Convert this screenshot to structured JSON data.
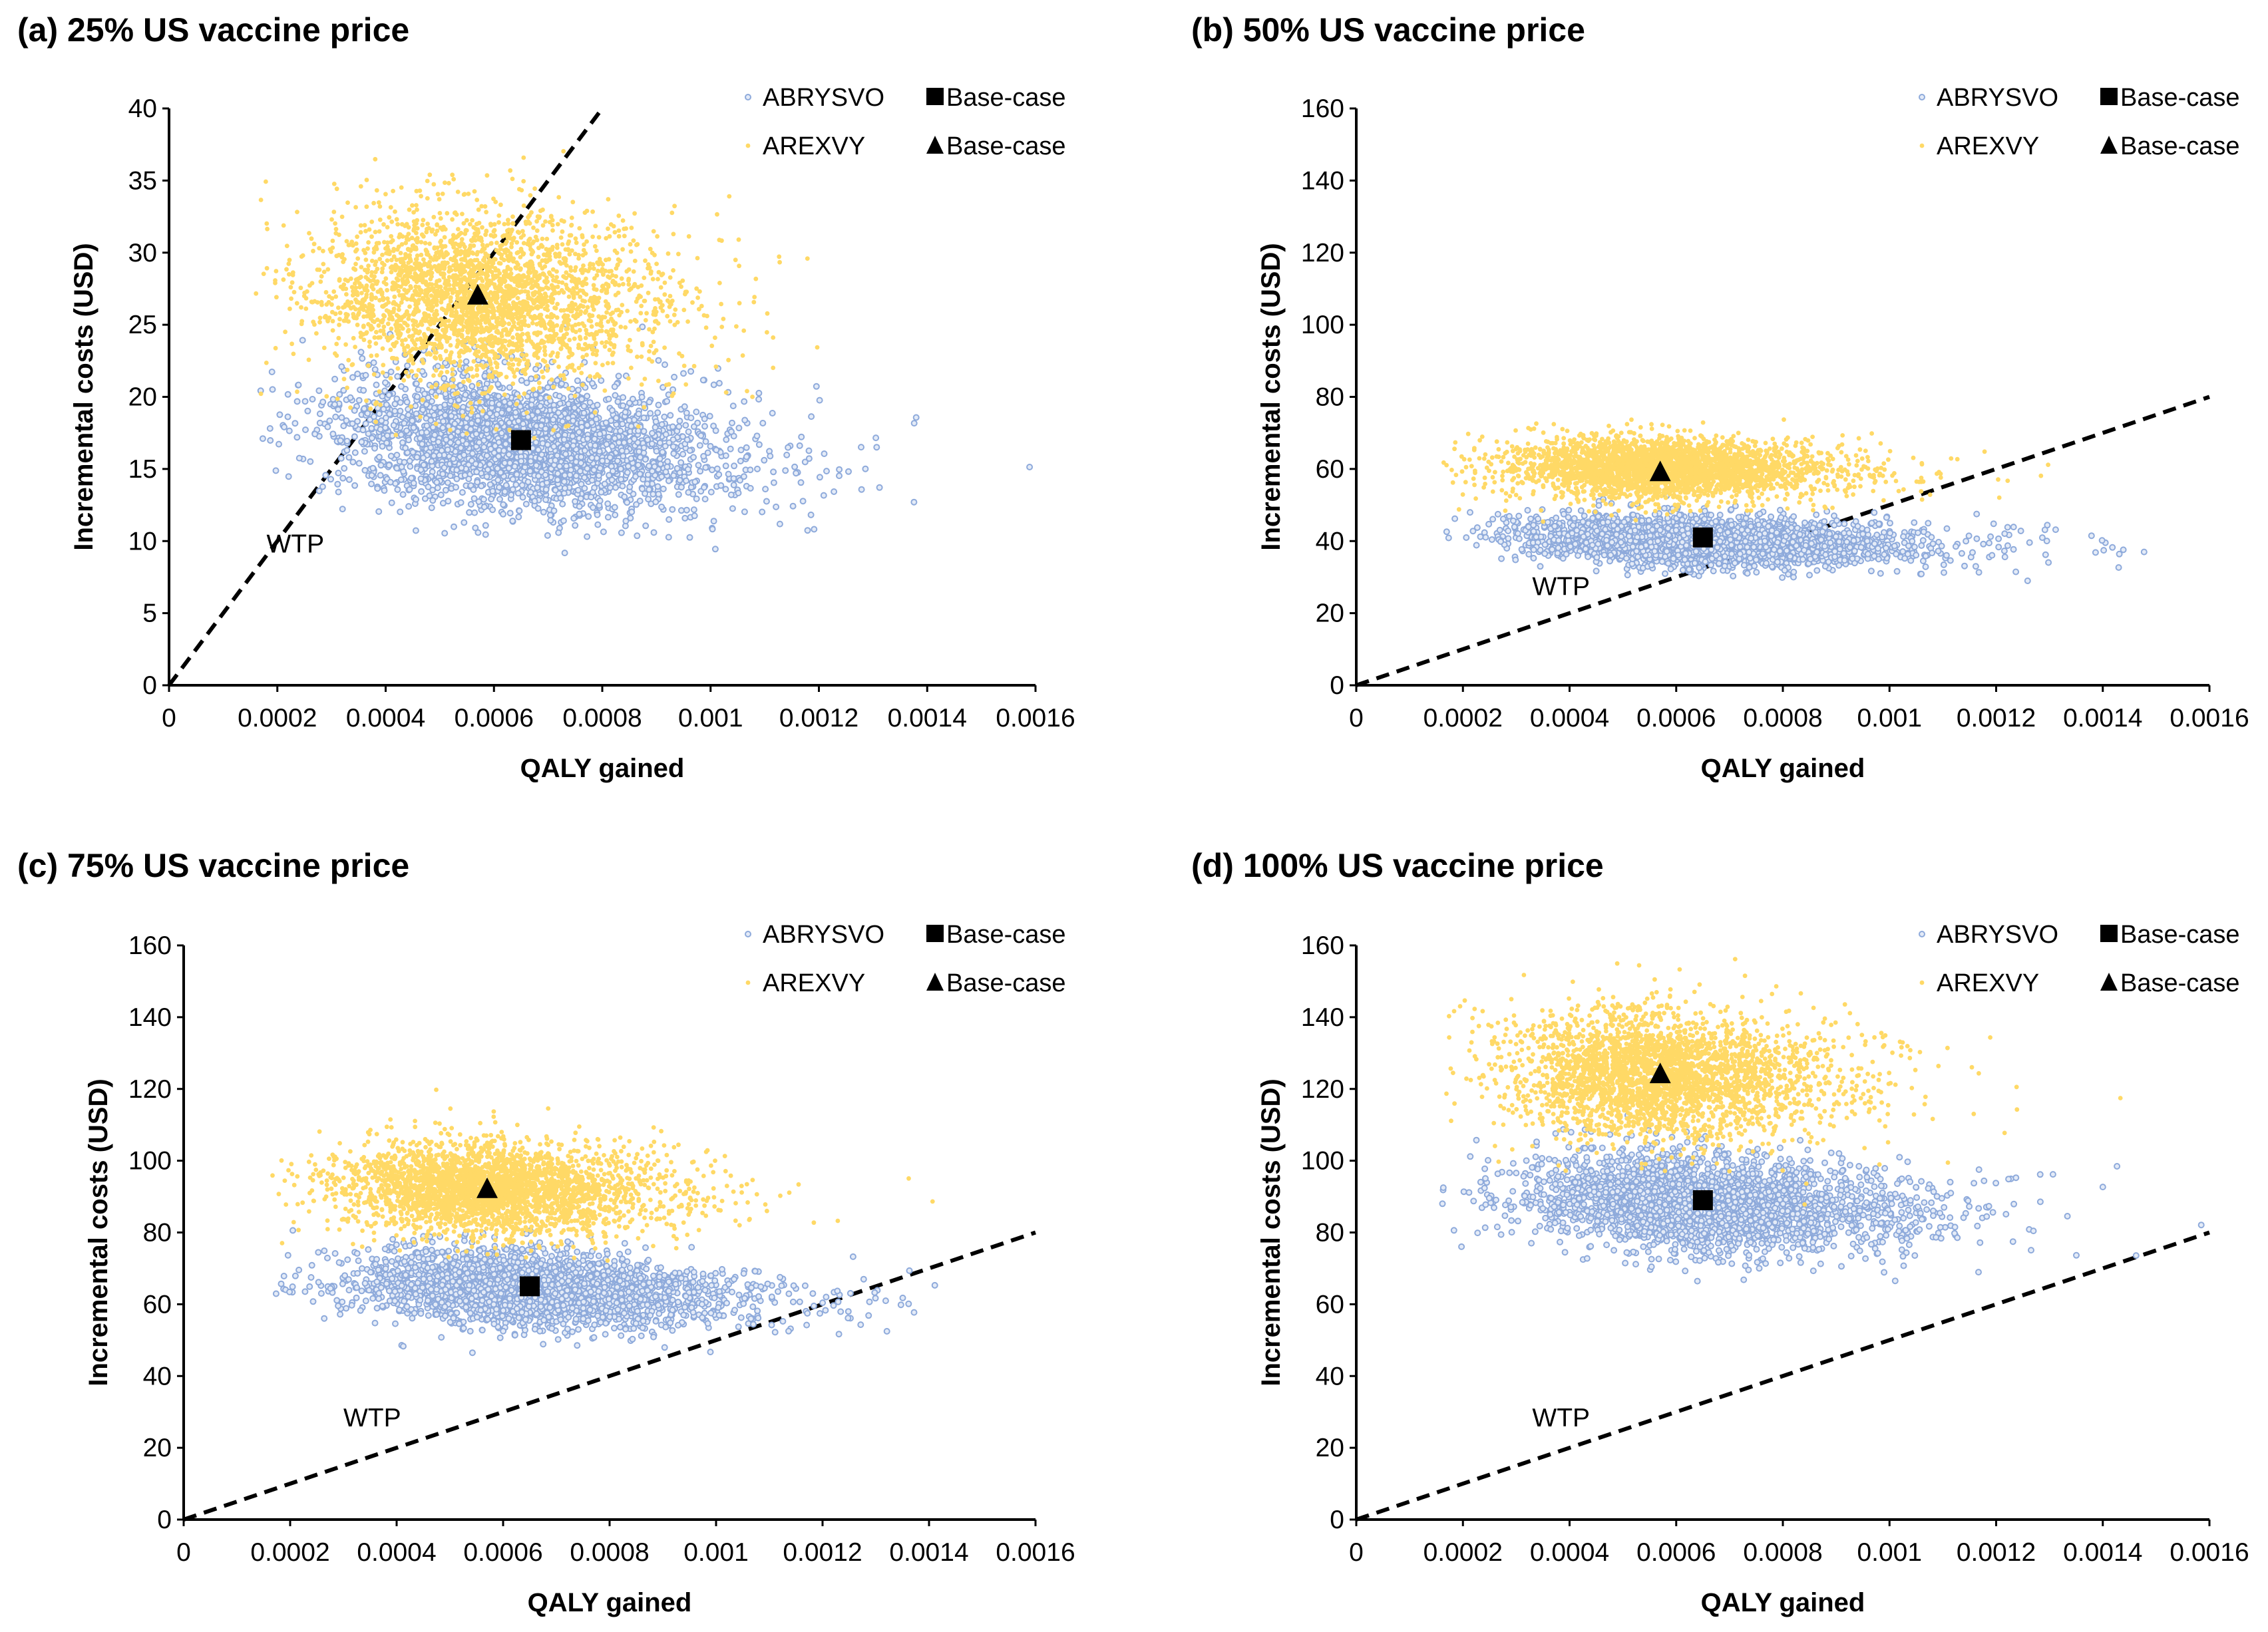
{
  "chart_data": [
    {
      "type": "scatter",
      "title": "(a) 25% US vaccine price",
      "xlabel": "QALY gained",
      "ylabel": "Incremental costs (USD)",
      "xlim": [
        0,
        0.0016
      ],
      "ylim": [
        0,
        40
      ],
      "xticks": [
        "0",
        "0.0002",
        "0.0004",
        "0.0006",
        "0.0008",
        "0.001",
        "0.0012",
        "0.0014",
        "0.0016"
      ],
      "yticks": [
        "0",
        "5",
        "10",
        "15",
        "20",
        "25",
        "30",
        "35",
        "40"
      ],
      "grid": false,
      "legend_position": "top-right",
      "wtp": {
        "label": "WTP",
        "slope_usd_per_qaly": 50000
      },
      "series": [
        {
          "name": "ABRYSVO",
          "color": "#8eaadb",
          "marker": "open-circle",
          "x_mean": 0.00065,
          "x_sd": 0.00016,
          "y_mean": 16.8,
          "y_sd": 2.3,
          "corr": -0.25
        },
        {
          "name": "AREXVY",
          "color": "#ffd966",
          "marker": "dot",
          "x_mean": 0.00057,
          "x_sd": 0.00014,
          "y_mean": 27,
          "y_sd": 3.0,
          "corr": -0.1
        }
      ],
      "base_case": [
        {
          "name": "Base-case",
          "series": "ABRYSVO",
          "marker": "square",
          "x": 0.00065,
          "y": 17
        },
        {
          "name": "Base-case",
          "series": "AREXVY",
          "marker": "triangle",
          "x": 0.00057,
          "y": 27
        }
      ]
    },
    {
      "type": "scatter",
      "title": "(b) 50% US vaccine price",
      "xlabel": "QALY gained",
      "ylabel": "Incremental costs (USD)",
      "xlim": [
        0,
        0.0016
      ],
      "ylim": [
        0,
        160
      ],
      "xticks": [
        "0",
        "0.0002",
        "0.0004",
        "0.0006",
        "0.0008",
        "0.001",
        "0.0012",
        "0.0014",
        "0.0016"
      ],
      "yticks": [
        "0",
        "20",
        "40",
        "60",
        "80",
        "100",
        "120",
        "140",
        "160"
      ],
      "grid": false,
      "legend_position": "top-right",
      "wtp": {
        "label": "WTP",
        "slope_usd_per_qaly": 50000
      },
      "series": [
        {
          "name": "ABRYSVO",
          "color": "#8eaadb",
          "marker": "open-circle",
          "x_mean": 0.00065,
          "x_sd": 0.00016,
          "y_mean": 40,
          "y_sd": 3.3,
          "corr": -0.2
        },
        {
          "name": "AREXVY",
          "color": "#ffd966",
          "marker": "dot",
          "x_mean": 0.00057,
          "x_sd": 0.00014,
          "y_mean": 60,
          "y_sd": 4.2,
          "corr": -0.1
        }
      ],
      "base_case": [
        {
          "name": "Base-case",
          "series": "ABRYSVO",
          "marker": "square",
          "x": 0.00065,
          "y": 41
        },
        {
          "name": "Base-case",
          "series": "AREXVY",
          "marker": "triangle",
          "x": 0.00057,
          "y": 59
        }
      ]
    },
    {
      "type": "scatter",
      "title": "(c) 75% US vaccine price",
      "xlabel": "QALY gained",
      "ylabel": "Incremental costs (USD)",
      "xlim": [
        0,
        0.0016
      ],
      "ylim": [
        0,
        160
      ],
      "xticks": [
        "0",
        "0.0002",
        "0.0004",
        "0.0006",
        "0.0008",
        "0.001",
        "0.0012",
        "0.0014",
        "0.0016"
      ],
      "yticks": [
        "0",
        "20",
        "40",
        "60",
        "80",
        "100",
        "120",
        "140",
        "160"
      ],
      "grid": false,
      "legend_position": "top-right",
      "wtp": {
        "label": "WTP",
        "slope_usd_per_qaly": 50000
      },
      "series": [
        {
          "name": "ABRYSVO",
          "color": "#8eaadb",
          "marker": "open-circle",
          "x_mean": 0.00065,
          "x_sd": 0.00016,
          "y_mean": 64,
          "y_sd": 5.0,
          "corr": -0.2
        },
        {
          "name": "AREXVY",
          "color": "#ffd966",
          "marker": "dot",
          "x_mean": 0.00057,
          "x_sd": 0.00014,
          "y_mean": 92,
          "y_sd": 6.5,
          "corr": -0.1
        }
      ],
      "base_case": [
        {
          "name": "Base-case",
          "series": "ABRYSVO",
          "marker": "square",
          "x": 0.00065,
          "y": 65
        },
        {
          "name": "Base-case",
          "series": "AREXVY",
          "marker": "triangle",
          "x": 0.00057,
          "y": 92
        }
      ]
    },
    {
      "type": "scatter",
      "title": "(d) 100% US vaccine price",
      "xlabel": "QALY gained",
      "ylabel": "Incremental costs (USD)",
      "xlim": [
        0,
        0.0016
      ],
      "ylim": [
        0,
        160
      ],
      "xticks": [
        "0",
        "0.0002",
        "0.0004",
        "0.0006",
        "0.0008",
        "0.001",
        "0.0012",
        "0.0014",
        "0.0016"
      ],
      "yticks": [
        "0",
        "20",
        "40",
        "60",
        "80",
        "100",
        "120",
        "140",
        "160"
      ],
      "grid": false,
      "legend_position": "top-right",
      "wtp": {
        "label": "WTP",
        "slope_usd_per_qaly": 50000
      },
      "series": [
        {
          "name": "ABRYSVO",
          "color": "#8eaadb",
          "marker": "open-circle",
          "x_mean": 0.00065,
          "x_sd": 0.00016,
          "y_mean": 88,
          "y_sd": 6.5,
          "corr": -0.2
        },
        {
          "name": "AREXVY",
          "color": "#ffd966",
          "marker": "dot",
          "x_mean": 0.00057,
          "x_sd": 0.00014,
          "y_mean": 124,
          "y_sd": 9.0,
          "corr": -0.1
        }
      ],
      "base_case": [
        {
          "name": "Base-case",
          "series": "ABRYSVO",
          "marker": "square",
          "x": 0.00065,
          "y": 89
        },
        {
          "name": "Base-case",
          "series": "AREXVY",
          "marker": "triangle",
          "x": 0.00057,
          "y": 124
        }
      ]
    }
  ]
}
